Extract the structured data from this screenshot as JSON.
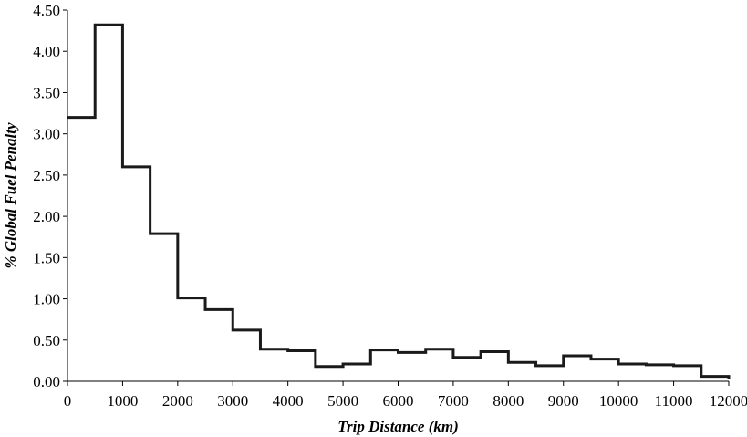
{
  "chart_data": {
    "type": "line",
    "title": "",
    "xlabel": "Trip Distance (km)",
    "ylabel": "% Global Fuel Penalty",
    "xlim": [
      0,
      12000
    ],
    "ylim": [
      0,
      4.5
    ],
    "x_ticks": [
      "0",
      "1000",
      "2000",
      "3000",
      "4000",
      "5000",
      "6000",
      "7000",
      "8000",
      "9000",
      "10000",
      "11000",
      "12000"
    ],
    "y_ticks": [
      "0.00",
      "0.50",
      "1.00",
      "1.50",
      "2.00",
      "2.50",
      "3.00",
      "3.50",
      "4.00",
      "4.50"
    ],
    "grid": false,
    "legend": "none",
    "step_width": 500,
    "series": [
      {
        "line_color": "#1a1a1a",
        "bin_start": [
          0,
          500,
          1000,
          1500,
          2000,
          2500,
          3000,
          3500,
          4000,
          4500,
          5000,
          5500,
          6000,
          6500,
          7000,
          7500,
          8000,
          8500,
          9000,
          9500,
          10000,
          10500,
          11000,
          11500
        ],
        "values": [
          3.2,
          4.32,
          2.6,
          1.79,
          1.01,
          0.87,
          0.62,
          0.39,
          0.37,
          0.18,
          0.21,
          0.38,
          0.35,
          0.39,
          0.29,
          0.36,
          0.23,
          0.19,
          0.31,
          0.27,
          0.21,
          0.2,
          0.19,
          0.06
        ]
      }
    ]
  }
}
